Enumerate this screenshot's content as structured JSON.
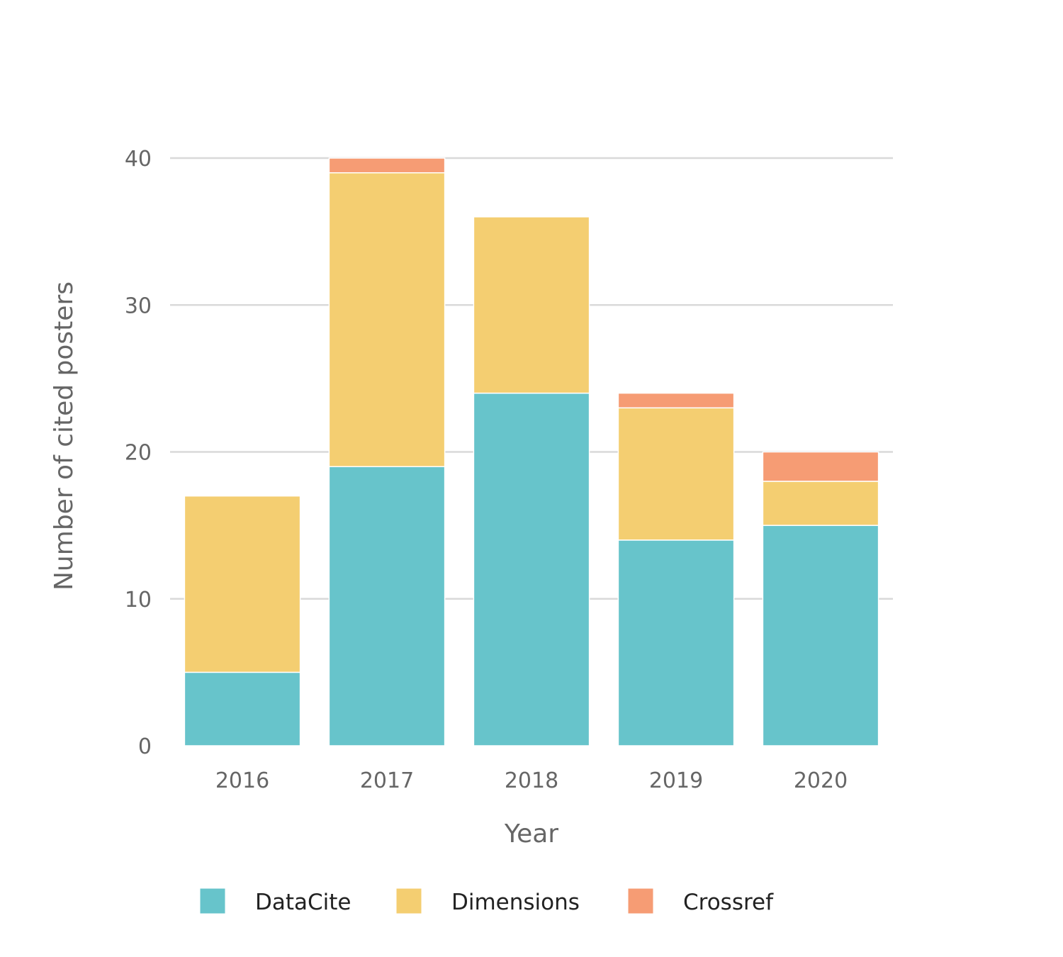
{
  "chart_data": {
    "type": "bar",
    "stacked": true,
    "title": "",
    "xlabel": "Year",
    "ylabel": "Number of cited posters",
    "categories": [
      "2016",
      "2017",
      "2018",
      "2019",
      "2020"
    ],
    "series": [
      {
        "name": "DataCite",
        "color": "#67c4cb",
        "values": [
          5,
          19,
          24,
          14,
          15
        ]
      },
      {
        "name": "Dimensions",
        "color": "#f4ce71",
        "values": [
          12,
          20,
          12,
          9,
          3
        ]
      },
      {
        "name": "Crossref",
        "color": "#f69c74",
        "values": [
          0,
          1,
          0,
          1,
          2
        ]
      }
    ],
    "ylim": [
      0,
      40
    ],
    "yticks": [
      0,
      10,
      20,
      30,
      40
    ],
    "grid": true,
    "legend_position": "bottom"
  }
}
